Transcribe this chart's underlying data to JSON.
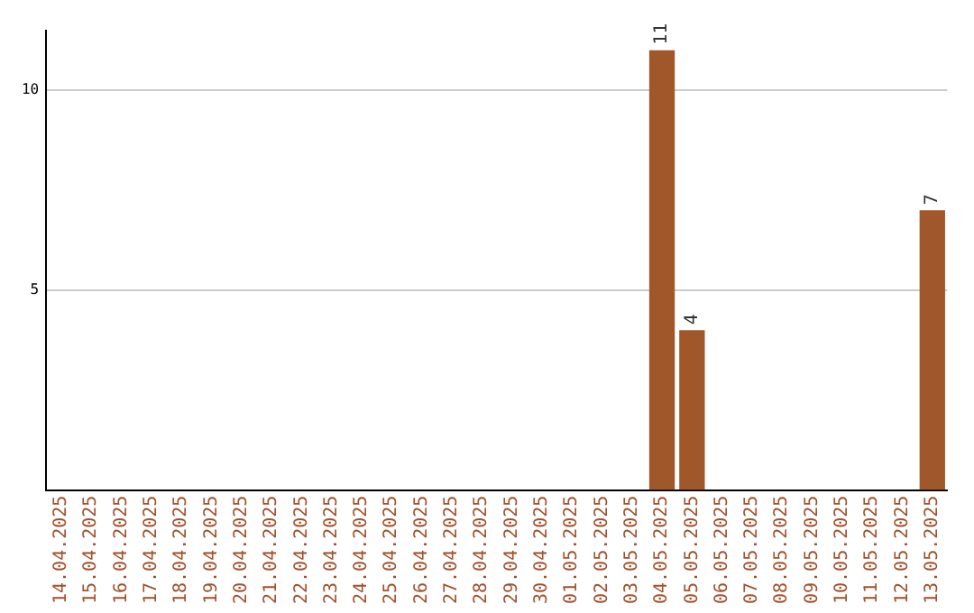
{
  "chart_data": {
    "type": "bar",
    "categories": [
      "14.04.2025",
      "15.04.2025",
      "16.04.2025",
      "17.04.2025",
      "18.04.2025",
      "19.04.2025",
      "20.04.2025",
      "21.04.2025",
      "22.04.2025",
      "23.04.2025",
      "24.04.2025",
      "25.04.2025",
      "26.04.2025",
      "27.04.2025",
      "28.04.2025",
      "29.04.2025",
      "30.04.2025",
      "01.05.2025",
      "02.05.2025",
      "03.05.2025",
      "04.05.2025",
      "05.05.2025",
      "06.05.2025",
      "07.05.2025",
      "08.05.2025",
      "09.05.2025",
      "10.05.2025",
      "11.05.2025",
      "12.05.2025",
      "13.05.2025"
    ],
    "values": [
      0,
      0,
      0,
      0,
      0,
      0,
      0,
      0,
      0,
      0,
      0,
      0,
      0,
      0,
      0,
      0,
      0,
      0,
      0,
      0,
      11,
      4,
      0,
      0,
      0,
      0,
      0,
      0,
      0,
      7
    ],
    "value_labels": [
      null,
      null,
      null,
      null,
      null,
      null,
      null,
      null,
      null,
      null,
      null,
      null,
      null,
      null,
      null,
      null,
      null,
      null,
      null,
      null,
      "11",
      "4",
      null,
      null,
      null,
      null,
      null,
      null,
      null,
      "7"
    ],
    "color": "#a0582a",
    "ylim": [
      0,
      11.5
    ],
    "yticks": [
      5,
      10
    ],
    "grid": "y",
    "legend": false
  }
}
